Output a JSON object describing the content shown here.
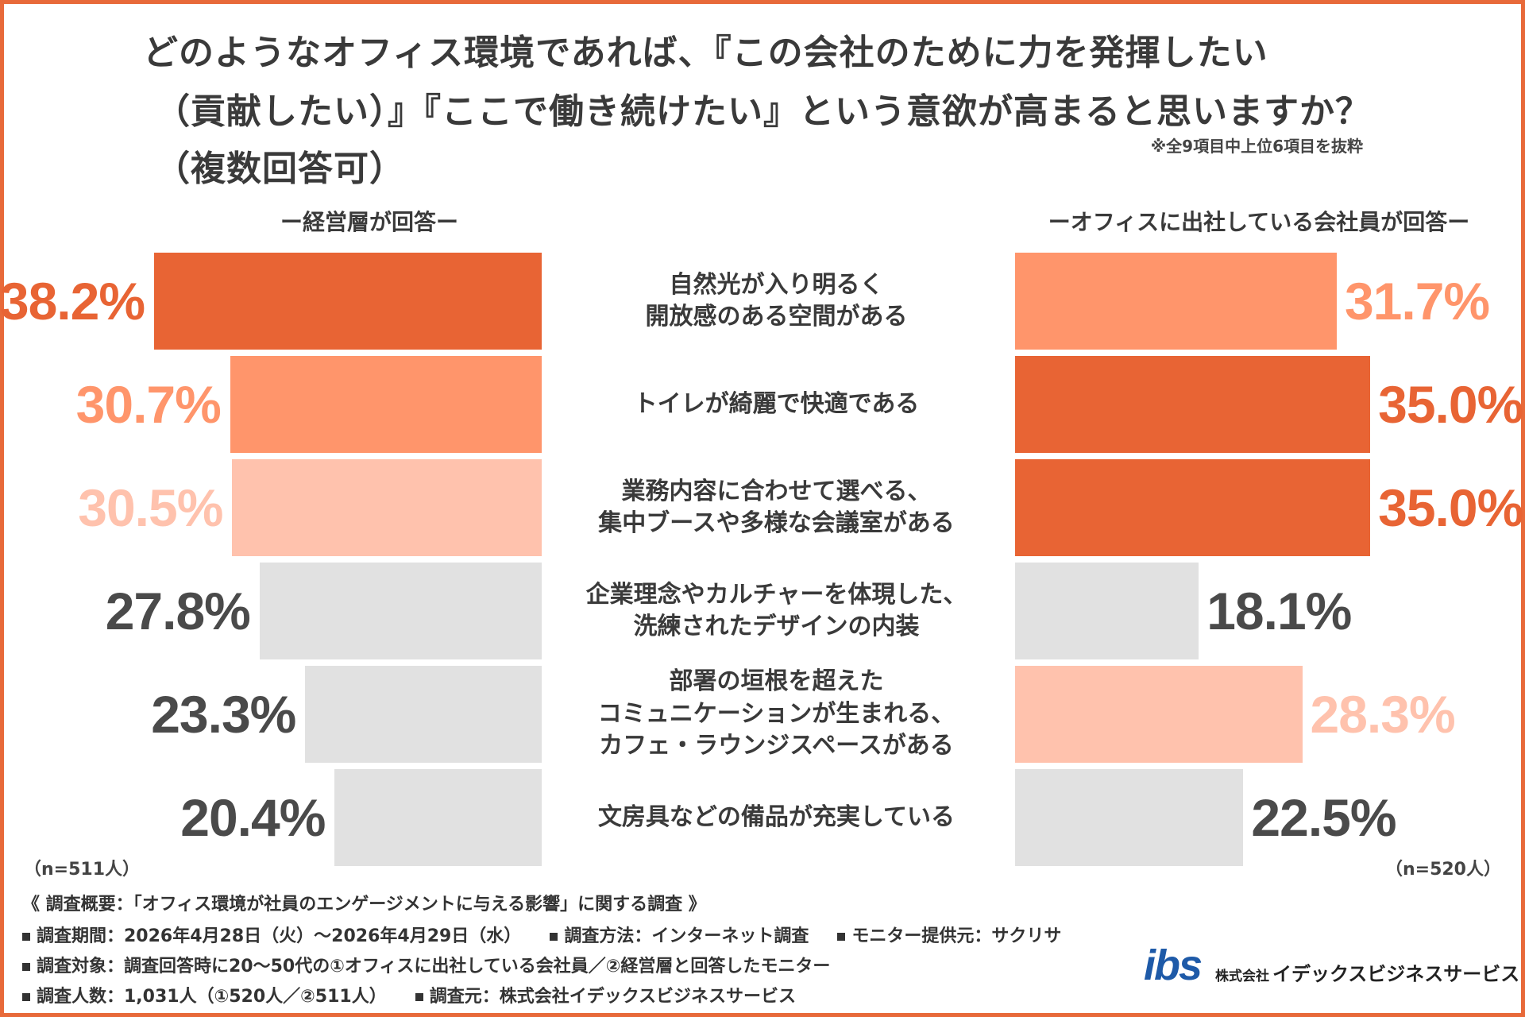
{
  "title": {
    "line1": "どのようなオフィス環境であれば、『この会社のために力を発揮したい",
    "line2": "（貢献したい）』『ここで働き続けたい』という意欲が高まると思いますか？",
    "line3": "（複数回答可）"
  },
  "note": "※全9項目中上位6項目を抜粋",
  "left_panel": {
    "title": "ー経営層が回答ー",
    "n": "（n=511人）"
  },
  "right_panel": {
    "title": "ーオフィスに出社している会社員が回答ー",
    "n": "（n=520人）"
  },
  "chart_data": {
    "type": "bar",
    "title": "どのようなオフィス環境であれば、『この会社のために力を発揮したい（貢献したい）』『ここで働き続けたい』という意欲が高まると思いますか？（複数回答可）",
    "orientation": "horizontal-butterfly",
    "unit": "%",
    "categories": [
      [
        "自然光が入り明るく",
        "開放感のある空間がある"
      ],
      [
        "トイレが綺麗で快適である"
      ],
      [
        "業務内容に合わせて選べる、",
        "集中ブースや多様な会議室がある"
      ],
      [
        "企業理念やカルチャーを体現した、",
        "洗練されたデザインの内装"
      ],
      [
        "部署の垣根を超えた",
        "コミュニケーションが生まれる、",
        "カフェ・ラウンジスペースがある"
      ],
      [
        "文房具などの備品が充実している"
      ]
    ],
    "series": [
      {
        "name": "ー経営層が回答ー",
        "values": [
          38.2,
          30.7,
          30.5,
          27.8,
          23.3,
          20.4
        ],
        "labels": [
          "38.2%",
          "30.7%",
          "30.5%",
          "27.8%",
          "23.3%",
          "20.4%"
        ]
      },
      {
        "name": "ーオフィスに出社している会社員が回答ー",
        "values": [
          31.7,
          35.0,
          35.0,
          18.1,
          28.3,
          22.5
        ],
        "labels": [
          "31.7%",
          "35.0%",
          "35.0%",
          "18.1%",
          "28.3%",
          "22.5%"
        ]
      }
    ],
    "rank_colors": {
      "first": "#e86434",
      "second": "#ff956b",
      "third": "#ffc2ad",
      "other": "#e1e1e1"
    },
    "label_colors": {
      "first": "#e86434",
      "second": "#ff956b",
      "third": "#ffc2ad",
      "other": "#4a4a4a"
    },
    "xlim": [
      0,
      38.2
    ]
  },
  "footer": {
    "header": "《 調査概要：「オフィス環境が社員のエンゲージメントに与える影響」に関する調査 》",
    "row1": [
      "調査期間：2026年4月28日（火）〜2026年4月29日（水）",
      "調査方法：インターネット調査",
      "モニター提供元：サクリサ"
    ],
    "row2": [
      "調査対象：調査回答時に20〜50代の①オフィスに出社している会社員／②経営層と回答したモニター"
    ],
    "row3": [
      "調査人数：1,031人（①520人／②511人）",
      "調査元：株式会社イデックスビジネスサービス"
    ]
  },
  "logo": {
    "mark": "ibs",
    "prefix": "株式会社",
    "name": "イデックスビジネスサービス"
  }
}
